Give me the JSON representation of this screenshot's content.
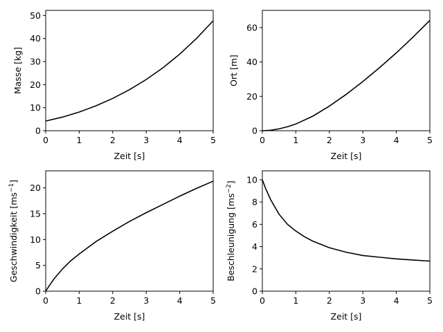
{
  "chart_data": [
    {
      "type": "line",
      "xlabel": "Zeit [s]",
      "ylabel": "Masse [kg]",
      "ylabel_sup": "",
      "ylabel_tail": "",
      "xlim": [
        0,
        5
      ],
      "ylim": [
        0,
        52.2
      ],
      "xticks": [
        0,
        1,
        2,
        3,
        4,
        5
      ],
      "yticks": [
        0,
        10,
        20,
        30,
        40,
        50
      ],
      "grid": false,
      "series": [
        {
          "x": [
            0,
            0.5,
            1,
            1.5,
            2,
            2.5,
            3,
            3.5,
            4,
            4.5,
            5
          ],
          "y": [
            4.2,
            5.9,
            8.1,
            10.8,
            14.0,
            17.8,
            22.2,
            27.3,
            33.2,
            40.0,
            47.7
          ]
        }
      ]
    },
    {
      "type": "line",
      "xlabel": "Zeit [s]",
      "ylabel": "Ort [m]",
      "ylabel_sup": "",
      "ylabel_tail": "",
      "xlim": [
        0,
        5
      ],
      "ylim": [
        0,
        70
      ],
      "xticks": [
        0,
        1,
        2,
        3,
        4,
        5
      ],
      "yticks": [
        0,
        20,
        40,
        60
      ],
      "grid": false,
      "series": [
        {
          "x": [
            0,
            0.25,
            0.5,
            0.75,
            1,
            1.5,
            2,
            2.5,
            3,
            3.5,
            4,
            4.5,
            5
          ],
          "y": [
            0,
            0.3,
            1.1,
            2.3,
            3.9,
            8.4,
            14.3,
            21.1,
            28.6,
            36.7,
            45.3,
            54.5,
            64.2
          ]
        }
      ]
    },
    {
      "type": "line",
      "xlabel": "Zeit [s]",
      "ylabel": "Geschwindigkeit [ms",
      "ylabel_sup": "−1",
      "ylabel_tail": "]",
      "xlim": [
        0,
        5
      ],
      "ylim": [
        0,
        23.3
      ],
      "xticks": [
        0,
        1,
        2,
        3,
        4,
        5
      ],
      "yticks": [
        0,
        5,
        10,
        15,
        20
      ],
      "grid": false,
      "series": [
        {
          "x": [
            0,
            0.1,
            0.25,
            0.5,
            0.75,
            1,
            1.5,
            2,
            2.5,
            3,
            3.5,
            4,
            4.5,
            5
          ],
          "y": [
            0,
            1.0,
            2.4,
            4.3,
            5.9,
            7.2,
            9.6,
            11.6,
            13.5,
            15.2,
            16.8,
            18.4,
            19.9,
            21.3
          ]
        }
      ]
    },
    {
      "type": "line",
      "xlabel": "Zeit [s]",
      "ylabel": "Beschleunigung [ms",
      "ylabel_sup": "−2",
      "ylabel_tail": "]",
      "xlim": [
        0,
        5
      ],
      "ylim": [
        0,
        10.8
      ],
      "xticks": [
        0,
        1,
        2,
        3,
        4,
        5
      ],
      "yticks": [
        0,
        2,
        4,
        6,
        8,
        10
      ],
      "grid": false,
      "series": [
        {
          "x": [
            0,
            0.1,
            0.25,
            0.5,
            0.75,
            1,
            1.25,
            1.5,
            2,
            2.5,
            3,
            3.5,
            4,
            4.5,
            5
          ],
          "y": [
            10.0,
            9.2,
            8.2,
            6.9,
            6.0,
            5.4,
            4.9,
            4.5,
            3.9,
            3.5,
            3.2,
            3.05,
            2.9,
            2.8,
            2.7
          ]
        }
      ]
    }
  ]
}
